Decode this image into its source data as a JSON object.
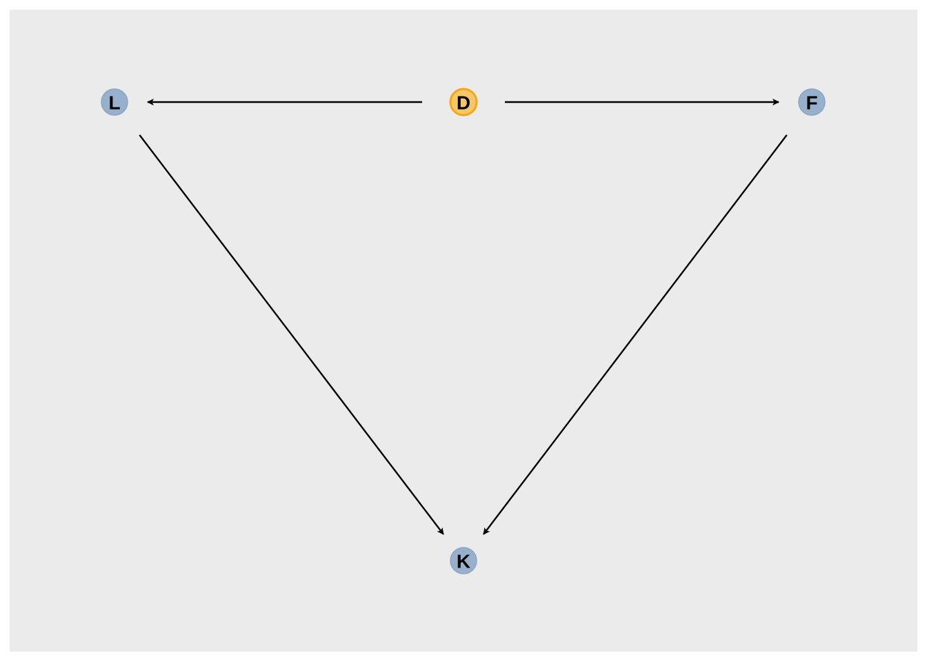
{
  "colors": {
    "background": "#ebebeb",
    "exposure_fill": "#f5c66a",
    "exposure_stroke": "#f3a712",
    "node_fill": "#97b0cc",
    "node_stroke": "#8aa6c4",
    "edge": "#000000"
  },
  "nodes": [
    {
      "id": "L",
      "label": "L",
      "role": "node"
    },
    {
      "id": "D",
      "label": "D",
      "role": "exposure"
    },
    {
      "id": "F",
      "label": "F",
      "role": "node"
    },
    {
      "id": "K",
      "label": "K",
      "role": "node"
    }
  ],
  "edges": [
    {
      "from": "D",
      "to": "L"
    },
    {
      "from": "D",
      "to": "F"
    },
    {
      "from": "L",
      "to": "K"
    },
    {
      "from": "F",
      "to": "K"
    }
  ]
}
